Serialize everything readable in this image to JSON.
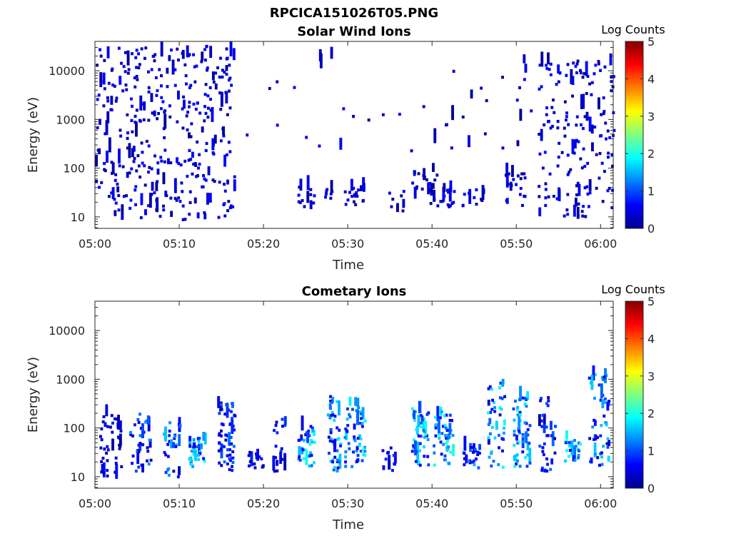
{
  "figure_title": "RPCICA151026T05.PNG",
  "chart_data": [
    {
      "type": "heatmap",
      "title": "Solar Wind Ions",
      "xlabel": "Time",
      "ylabel": "Energy (eV)",
      "x_ticks": [
        "05:00",
        "05:10",
        "05:20",
        "05:30",
        "05:40",
        "05:50",
        "06:00"
      ],
      "xlim_minutes": [
        0,
        61.5
      ],
      "y_ticks": [
        "10",
        "100",
        "1000",
        "10000"
      ],
      "y_scale": "log",
      "ylim": [
        5.8,
        40000
      ],
      "colorbar": {
        "label": "Log Counts",
        "ticks": [
          "0",
          "1",
          "2",
          "3",
          "4",
          "5"
        ],
        "range": [
          0,
          5
        ],
        "colormap": "jet"
      },
      "clusters": [
        {
          "t": [
            0,
            16.5
          ],
          "e": [
            100,
            30000
          ],
          "n": 260,
          "v": [
            0.1,
            0.7
          ]
        },
        {
          "t": [
            0,
            16.5
          ],
          "e": [
            8,
            100
          ],
          "n": 110,
          "v": [
            0.1,
            0.7
          ]
        },
        {
          "t": [
            16.5,
            52
          ],
          "e": [
            200,
            20000
          ],
          "n": 40,
          "v": [
            0.1,
            0.6
          ]
        },
        {
          "t": [
            24,
            26
          ],
          "e": [
            14,
            40
          ],
          "n": 14,
          "v": [
            0.1,
            0.7
          ]
        },
        {
          "t": [
            27,
            28
          ],
          "e": [
            20,
            35
          ],
          "n": 8,
          "v": [
            0.1,
            0.6
          ]
        },
        {
          "t": [
            29.5,
            32
          ],
          "e": [
            15,
            40
          ],
          "n": 20,
          "v": [
            0.1,
            0.7
          ]
        },
        {
          "t": [
            34.5,
            36.5
          ],
          "e": [
            12,
            35
          ],
          "n": 8,
          "v": [
            0.1,
            0.6
          ]
        },
        {
          "t": [
            37.5,
            40.5
          ],
          "e": [
            15,
            90
          ],
          "n": 24,
          "v": [
            0.1,
            0.7
          ]
        },
        {
          "t": [
            40.5,
            42.5
          ],
          "e": [
            15,
            40
          ],
          "n": 18,
          "v": [
            0.1,
            0.7
          ]
        },
        {
          "t": [
            43.5,
            46
          ],
          "e": [
            15,
            35
          ],
          "n": 12,
          "v": [
            0.1,
            0.6
          ]
        },
        {
          "t": [
            48.5,
            51
          ],
          "e": [
            14,
            80
          ],
          "n": 22,
          "v": [
            0.1,
            0.7
          ]
        },
        {
          "t": [
            52.5,
            61.5
          ],
          "e": [
            100,
            15000
          ],
          "n": 120,
          "v": [
            0.1,
            0.7
          ]
        },
        {
          "t": [
            52.5,
            61.5
          ],
          "e": [
            8,
            100
          ],
          "n": 50,
          "v": [
            0.1,
            0.7
          ]
        }
      ]
    },
    {
      "type": "heatmap",
      "title": "Cometary Ions",
      "xlabel": "Time",
      "ylabel": "Energy (eV)",
      "x_ticks": [
        "05:00",
        "05:10",
        "05:20",
        "05:30",
        "05:40",
        "05:50",
        "06:00"
      ],
      "xlim_minutes": [
        0,
        61.5
      ],
      "y_ticks": [
        "10",
        "100",
        "1000",
        "10000"
      ],
      "y_scale": "log",
      "ylim": [
        5.8,
        40000
      ],
      "colorbar": {
        "label": "Log Counts",
        "ticks": [
          "0",
          "1",
          "2",
          "3",
          "4",
          "5"
        ],
        "range": [
          0,
          5
        ],
        "colormap": "jet"
      },
      "clusters": [
        {
          "t": [
            0.5,
            3
          ],
          "e": [
            8,
            180
          ],
          "n": 45,
          "v": [
            0.1,
            0.8
          ]
        },
        {
          "t": [
            4,
            6.5
          ],
          "e": [
            12,
            200
          ],
          "n": 35,
          "v": [
            0.2,
            1.4
          ]
        },
        {
          "t": [
            8,
            10
          ],
          "e": [
            8,
            120
          ],
          "n": 30,
          "v": [
            0.2,
            1.6
          ]
        },
        {
          "t": [
            11,
            13
          ],
          "e": [
            14,
            60
          ],
          "n": 30,
          "v": [
            0.5,
            1.9
          ]
        },
        {
          "t": [
            14.5,
            16.5
          ],
          "e": [
            12,
            300
          ],
          "n": 60,
          "v": [
            0.2,
            1.2
          ]
        },
        {
          "t": [
            18,
            20
          ],
          "e": [
            14,
            30
          ],
          "n": 15,
          "v": [
            0.2,
            0.8
          ]
        },
        {
          "t": [
            21,
            22.5
          ],
          "e": [
            12,
            180
          ],
          "n": 20,
          "v": [
            0.2,
            1.0
          ]
        },
        {
          "t": [
            24,
            26
          ],
          "e": [
            15,
            100
          ],
          "n": 40,
          "v": [
            0.5,
            2.0
          ]
        },
        {
          "t": [
            27.5,
            29
          ],
          "e": [
            12,
            500
          ],
          "n": 45,
          "v": [
            0.3,
            1.8
          ]
        },
        {
          "t": [
            29.5,
            32
          ],
          "e": [
            15,
            300
          ],
          "n": 60,
          "v": [
            0.5,
            2.0
          ]
        },
        {
          "t": [
            34,
            35.5
          ],
          "e": [
            10,
            40
          ],
          "n": 14,
          "v": [
            0.2,
            0.9
          ]
        },
        {
          "t": [
            37.5,
            39.5
          ],
          "e": [
            15,
            250
          ],
          "n": 45,
          "v": [
            0.5,
            2.0
          ]
        },
        {
          "t": [
            40,
            42.5
          ],
          "e": [
            15,
            200
          ],
          "n": 50,
          "v": [
            0.5,
            2.1
          ]
        },
        {
          "t": [
            43.5,
            45.5
          ],
          "e": [
            14,
            40
          ],
          "n": 25,
          "v": [
            0.3,
            1.6
          ]
        },
        {
          "t": [
            46.5,
            48.5
          ],
          "e": [
            14,
            900
          ],
          "n": 45,
          "v": [
            0.4,
            2.0
          ]
        },
        {
          "t": [
            49.5,
            51.5
          ],
          "e": [
            15,
            400
          ],
          "n": 55,
          "v": [
            0.5,
            2.1
          ]
        },
        {
          "t": [
            52.5,
            54.5
          ],
          "e": [
            12,
            400
          ],
          "n": 35,
          "v": [
            0.2,
            1.2
          ]
        },
        {
          "t": [
            55.5,
            57.5
          ],
          "e": [
            15,
            60
          ],
          "n": 25,
          "v": [
            0.5,
            2.0
          ]
        },
        {
          "t": [
            58.5,
            61
          ],
          "e": [
            14,
            1300
          ],
          "n": 55,
          "v": [
            0.3,
            1.8
          ]
        }
      ]
    }
  ]
}
